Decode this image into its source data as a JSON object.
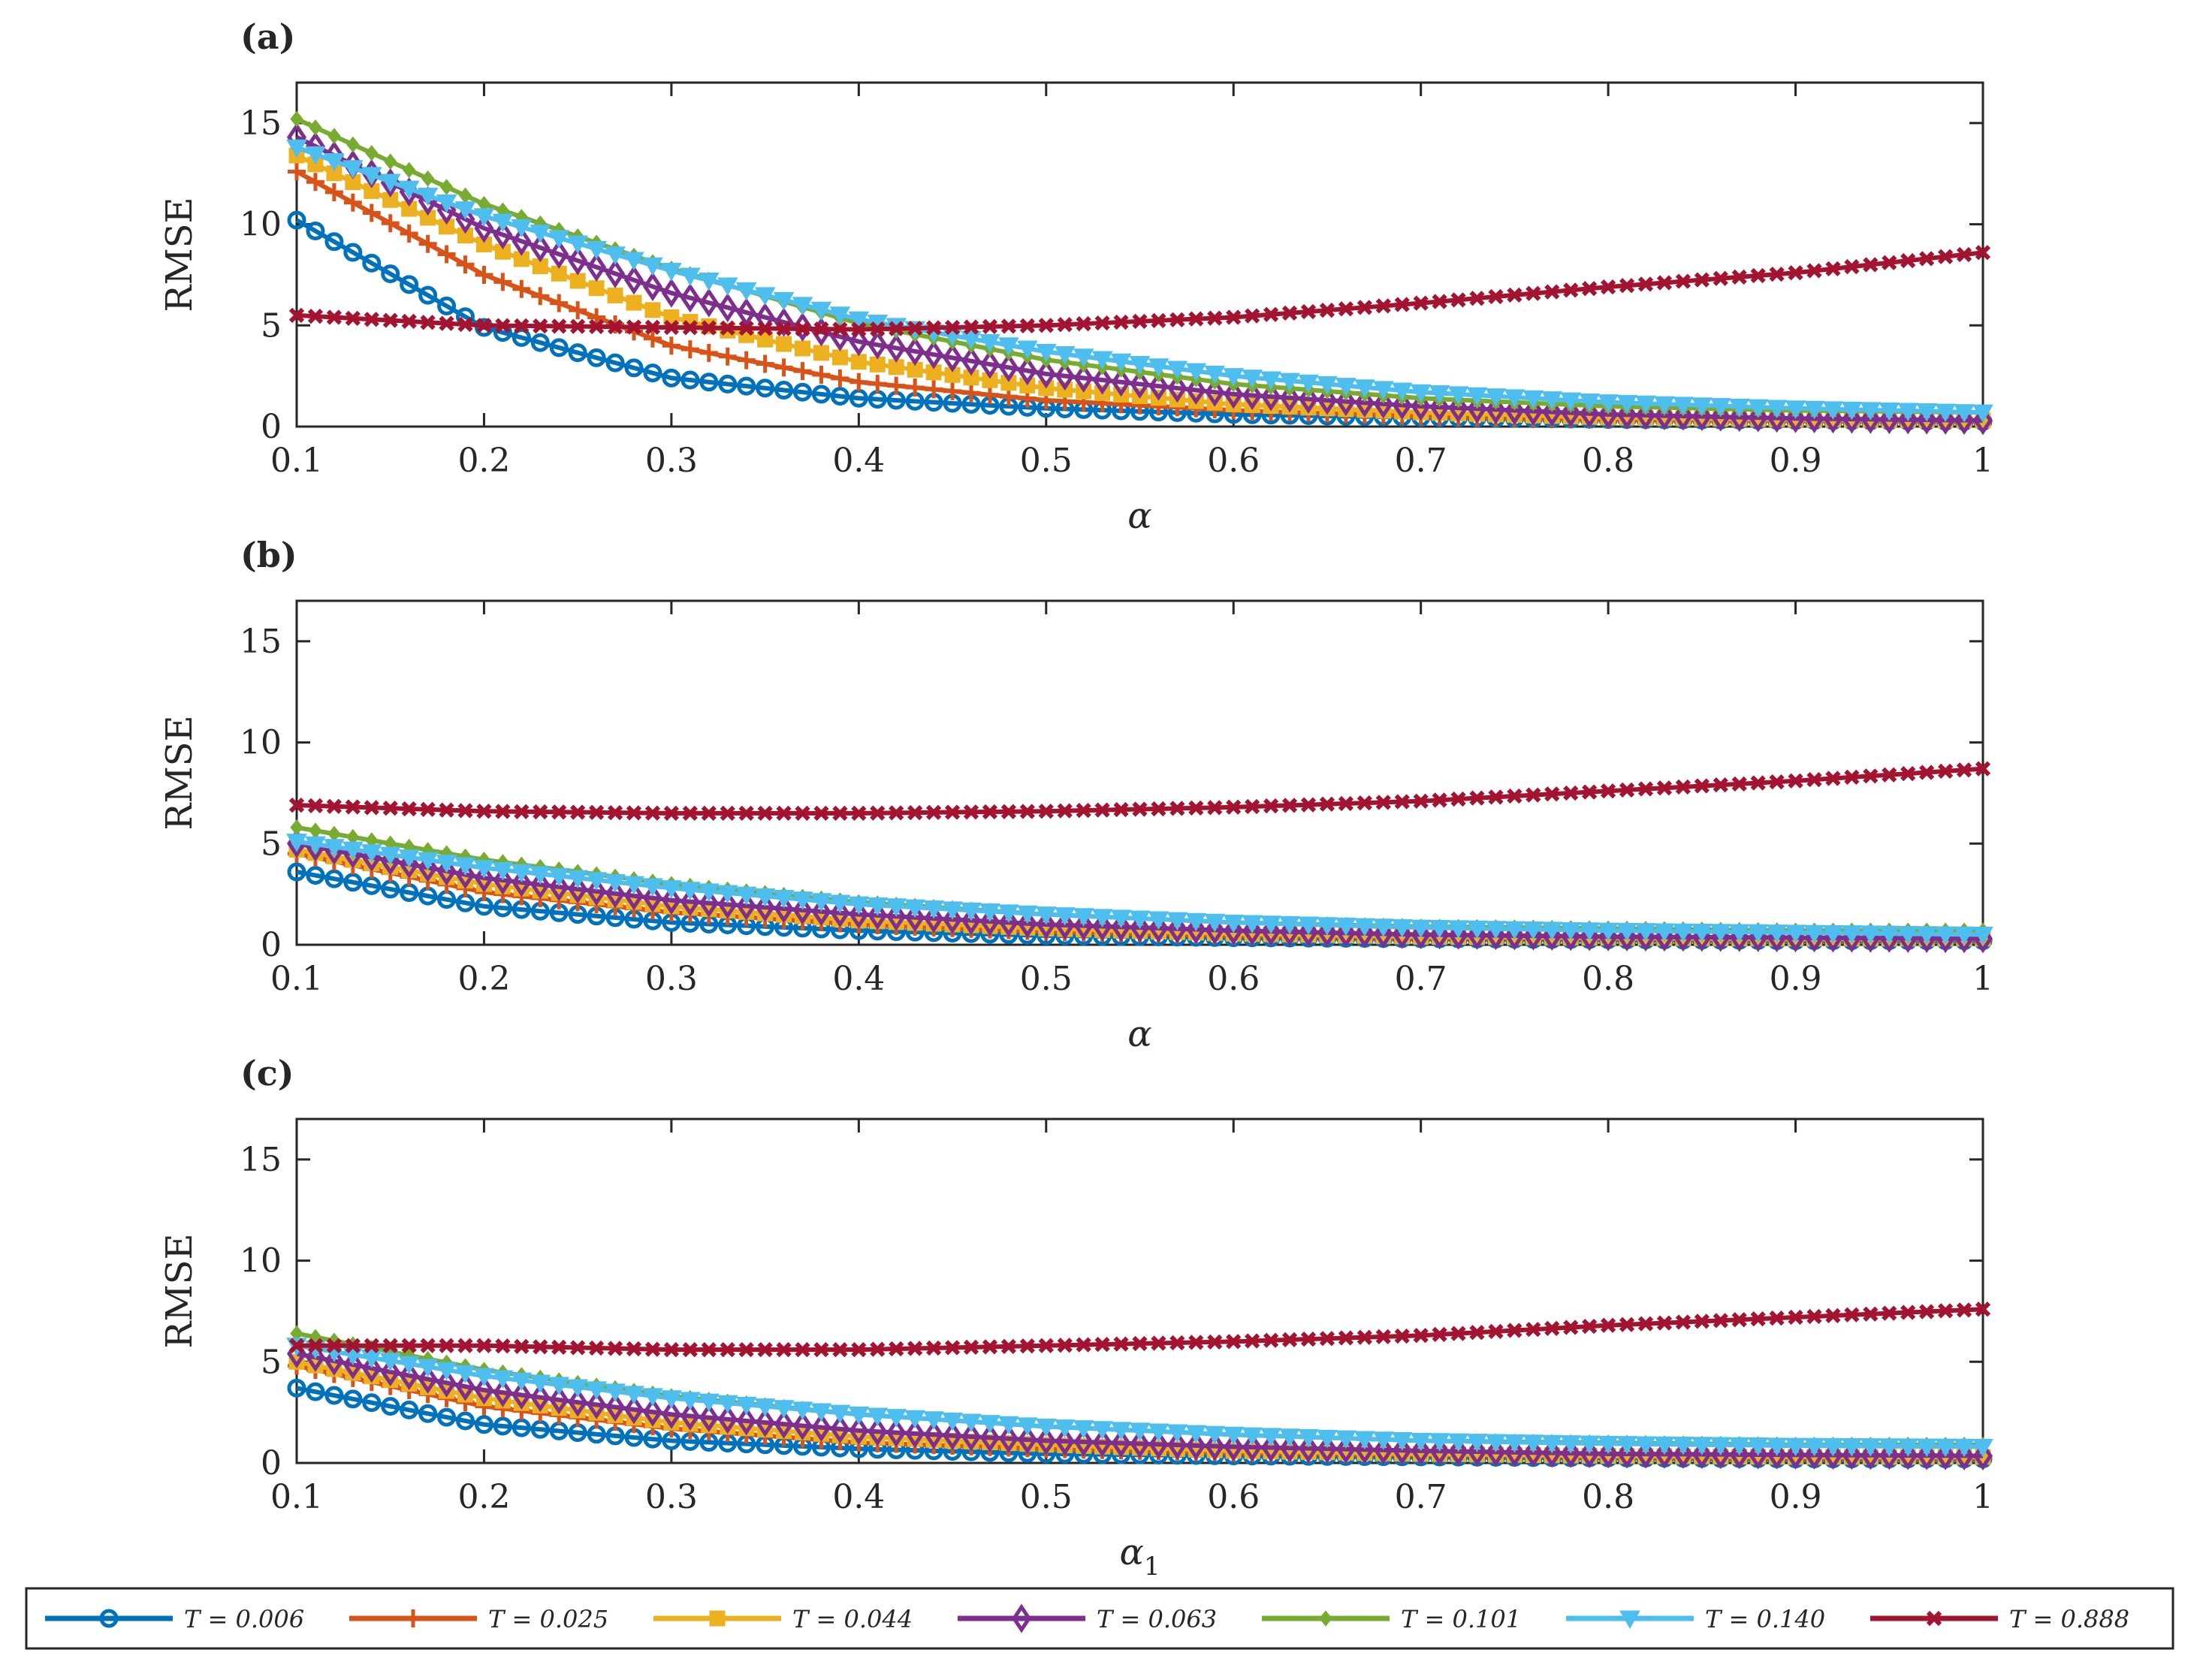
{
  "legend": [
    {
      "label": "T = 0.006",
      "color": "#0072BD",
      "marker": "circle"
    },
    {
      "label": "T = 0.025",
      "color": "#D95319",
      "marker": "plus"
    },
    {
      "label": "T = 0.044",
      "color": "#EDB120",
      "marker": "square"
    },
    {
      "label": "T = 0.063",
      "color": "#7E2F8E",
      "marker": "diamond"
    },
    {
      "label": "T = 0.101",
      "color": "#77AC30",
      "marker": "smalldiamond"
    },
    {
      "label": "T = 0.140",
      "color": "#4DBEEE",
      "marker": "triangle-down"
    },
    {
      "label": "T = 0.888",
      "color": "#A2142F",
      "marker": "x"
    }
  ],
  "chart_data": [
    {
      "type": "line",
      "panel_label": "(a)",
      "xlabel": "α",
      "ylabel": "RMSE",
      "xlim": [
        0.1,
        1
      ],
      "ylim": [
        0,
        17
      ],
      "xticks": [
        "0.1",
        "0.2",
        "0.3",
        "0.4",
        "0.5",
        "0.6",
        "0.7",
        "0.8",
        "0.9",
        "1"
      ],
      "yticks": [
        "0",
        "5",
        "10",
        "15"
      ],
      "x": [
        0.1,
        0.2,
        0.3,
        0.4,
        0.5,
        0.6,
        0.7,
        0.8,
        0.9,
        1.0
      ],
      "series": [
        {
          "name": "T = 0.006",
          "values": [
            10.2,
            4.9,
            2.4,
            1.4,
            0.9,
            0.6,
            0.45,
            0.35,
            0.3,
            0.25
          ]
        },
        {
          "name": "T = 0.025",
          "values": [
            12.6,
            7.5,
            4.0,
            2.2,
            1.3,
            0.8,
            0.5,
            0.35,
            0.3,
            0.25
          ]
        },
        {
          "name": "T = 0.044",
          "values": [
            13.4,
            9.0,
            5.4,
            3.2,
            1.9,
            1.1,
            0.7,
            0.45,
            0.35,
            0.3
          ]
        },
        {
          "name": "T = 0.063",
          "values": [
            14.3,
            9.8,
            6.6,
            4.2,
            2.6,
            1.6,
            1.0,
            0.6,
            0.4,
            0.3
          ]
        },
        {
          "name": "T = 0.101",
          "values": [
            15.2,
            11.0,
            7.8,
            5.1,
            3.3,
            2.1,
            1.4,
            1.0,
            0.8,
            0.7
          ]
        },
        {
          "name": "T = 0.140",
          "values": [
            13.8,
            10.4,
            7.7,
            5.3,
            3.7,
            2.5,
            1.7,
            1.2,
            0.9,
            0.7
          ]
        },
        {
          "name": "T = 0.888",
          "values": [
            5.5,
            5.0,
            4.9,
            4.8,
            5.0,
            5.4,
            6.1,
            6.9,
            7.6,
            8.6
          ]
        }
      ]
    },
    {
      "type": "line",
      "panel_label": "(b)",
      "xlabel": "α",
      "ylabel": "RMSE",
      "xlim": [
        0.1,
        1
      ],
      "ylim": [
        0,
        17
      ],
      "xticks": [
        "0.1",
        "0.2",
        "0.3",
        "0.4",
        "0.5",
        "0.6",
        "0.7",
        "0.8",
        "0.9",
        "1"
      ],
      "yticks": [
        "0",
        "5",
        "10",
        "15"
      ],
      "x": [
        0.1,
        0.2,
        0.3,
        0.4,
        0.5,
        0.6,
        0.7,
        0.8,
        0.9,
        1.0
      ],
      "series": [
        {
          "name": "T = 0.006",
          "values": [
            3.6,
            1.9,
            1.1,
            0.7,
            0.45,
            0.35,
            0.3,
            0.25,
            0.2,
            0.2
          ]
        },
        {
          "name": "T = 0.025",
          "values": [
            4.5,
            2.6,
            1.6,
            1.0,
            0.65,
            0.45,
            0.35,
            0.3,
            0.25,
            0.25
          ]
        },
        {
          "name": "T = 0.044",
          "values": [
            4.7,
            3.0,
            1.9,
            1.2,
            0.8,
            0.55,
            0.4,
            0.35,
            0.3,
            0.3
          ]
        },
        {
          "name": "T = 0.063",
          "values": [
            5.0,
            3.3,
            2.2,
            1.5,
            1.0,
            0.7,
            0.5,
            0.4,
            0.35,
            0.3
          ]
        },
        {
          "name": "T = 0.101",
          "values": [
            5.8,
            4.2,
            3.0,
            2.1,
            1.5,
            1.1,
            0.9,
            0.8,
            0.7,
            0.7
          ]
        },
        {
          "name": "T = 0.140",
          "values": [
            5.1,
            3.8,
            2.8,
            2.0,
            1.5,
            1.1,
            0.85,
            0.7,
            0.6,
            0.5
          ]
        },
        {
          "name": "T = 0.888",
          "values": [
            6.9,
            6.6,
            6.5,
            6.5,
            6.6,
            6.8,
            7.1,
            7.6,
            8.1,
            8.7
          ]
        }
      ]
    },
    {
      "type": "line",
      "panel_label": "(c)",
      "xlabel": "α1",
      "ylabel": "RMSE",
      "xlim": [
        0.1,
        1
      ],
      "ylim": [
        0,
        17
      ],
      "xticks": [
        "0.1",
        "0.2",
        "0.3",
        "0.4",
        "0.5",
        "0.6",
        "0.7",
        "0.8",
        "0.9",
        "1"
      ],
      "yticks": [
        "0",
        "5",
        "10",
        "15"
      ],
      "x": [
        0.1,
        0.2,
        0.3,
        0.4,
        0.5,
        0.6,
        0.7,
        0.8,
        0.9,
        1.0
      ],
      "series": [
        {
          "name": "T = 0.006",
          "values": [
            3.7,
            1.9,
            1.1,
            0.7,
            0.45,
            0.35,
            0.3,
            0.25,
            0.2,
            0.2
          ]
        },
        {
          "name": "T = 0.025",
          "values": [
            4.8,
            2.8,
            1.7,
            1.0,
            0.7,
            0.5,
            0.4,
            0.3,
            0.25,
            0.25
          ]
        },
        {
          "name": "T = 0.044",
          "values": [
            5.0,
            3.2,
            2.0,
            1.3,
            0.9,
            0.6,
            0.45,
            0.35,
            0.3,
            0.3
          ]
        },
        {
          "name": "T = 0.063",
          "values": [
            5.4,
            3.6,
            2.4,
            1.6,
            1.1,
            0.8,
            0.6,
            0.45,
            0.4,
            0.35
          ]
        },
        {
          "name": "T = 0.101",
          "values": [
            6.4,
            4.6,
            3.3,
            2.4,
            1.8,
            1.4,
            1.1,
            1.0,
            0.9,
            0.9
          ]
        },
        {
          "name": "T = 0.140",
          "values": [
            5.8,
            4.3,
            3.2,
            2.4,
            1.8,
            1.4,
            1.1,
            0.95,
            0.85,
            0.8
          ]
        },
        {
          "name": "T = 0.888",
          "values": [
            5.8,
            5.8,
            5.6,
            5.6,
            5.8,
            6.0,
            6.3,
            6.8,
            7.2,
            7.6
          ]
        }
      ]
    }
  ]
}
